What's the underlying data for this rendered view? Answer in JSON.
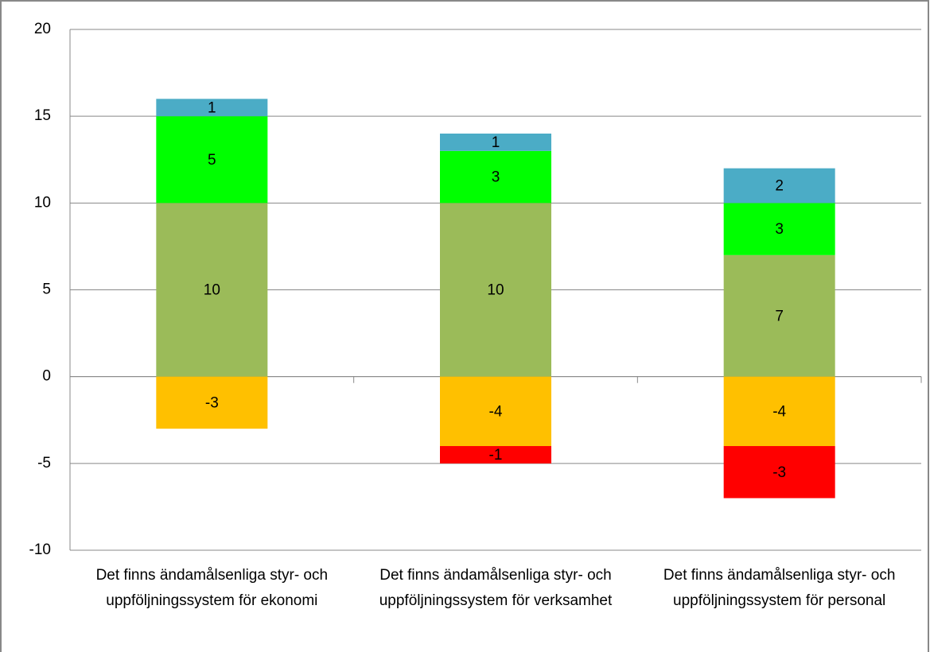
{
  "chart_data": {
    "type": "stacked_bar",
    "categories": [
      "Det finns ändamålsenliga styr- och uppföljningssystem för ekonomi",
      "Det finns ändamålsenliga styr- och uppföljningssystem för verksamhet",
      "Det finns ändamålsenliga styr- och uppföljningssystem för personal"
    ],
    "series": [
      {
        "color": "#9bbb59",
        "values": [
          10,
          10,
          7
        ]
      },
      {
        "color": "#00ff00",
        "values": [
          5,
          3,
          3
        ]
      },
      {
        "color": "#4bacc6",
        "values": [
          1,
          1,
          2
        ]
      },
      {
        "color": "#ffc000",
        "values": [
          -3,
          -4,
          -4
        ]
      },
      {
        "color": "#ff0000",
        "values": [
          null,
          -1,
          -3
        ]
      }
    ],
    "ylim": [
      -10,
      20
    ],
    "yticks": [
      -10,
      -5,
      0,
      5,
      10,
      15,
      20
    ],
    "grid": true
  }
}
